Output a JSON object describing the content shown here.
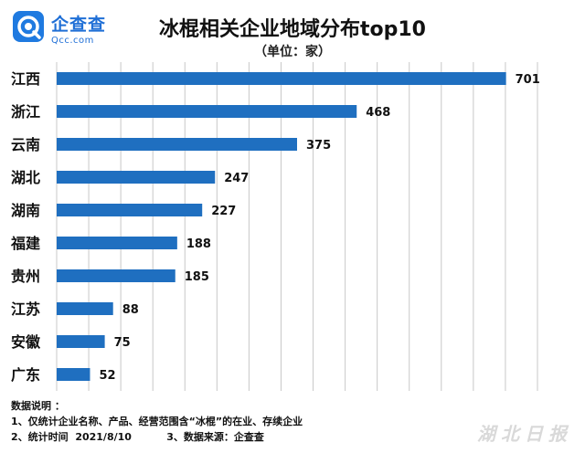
{
  "logo": {
    "name_cn": "企查查",
    "name_en": "Qcc.com",
    "icon": "qcc-logo-icon"
  },
  "notes": {
    "heading": "数据说明 ：",
    "line1": "1、仅统计企业名称、产品、经营范围含“冰棍”的在业、存续企业",
    "line2": "2、统计时间  2021/8/10          3、数据来源：企查查"
  },
  "watermark": "湖北日报",
  "colors": {
    "bar": "#1f6fc0",
    "grid": "#c8c8c8",
    "brand": "#1f7ae0"
  },
  "chart_data": {
    "type": "bar",
    "orientation": "horizontal",
    "title": "冰棍相关企业地域分布top10",
    "subtitle": "（单位：家）",
    "categories": [
      "江西",
      "浙江",
      "云南",
      "湖北",
      "湖南",
      "福建",
      "贵州",
      "江苏",
      "安徽",
      "广东"
    ],
    "values": [
      701,
      468,
      375,
      247,
      227,
      188,
      185,
      88,
      75,
      52
    ],
    "xlim": [
      0,
      750
    ],
    "grid": true
  }
}
